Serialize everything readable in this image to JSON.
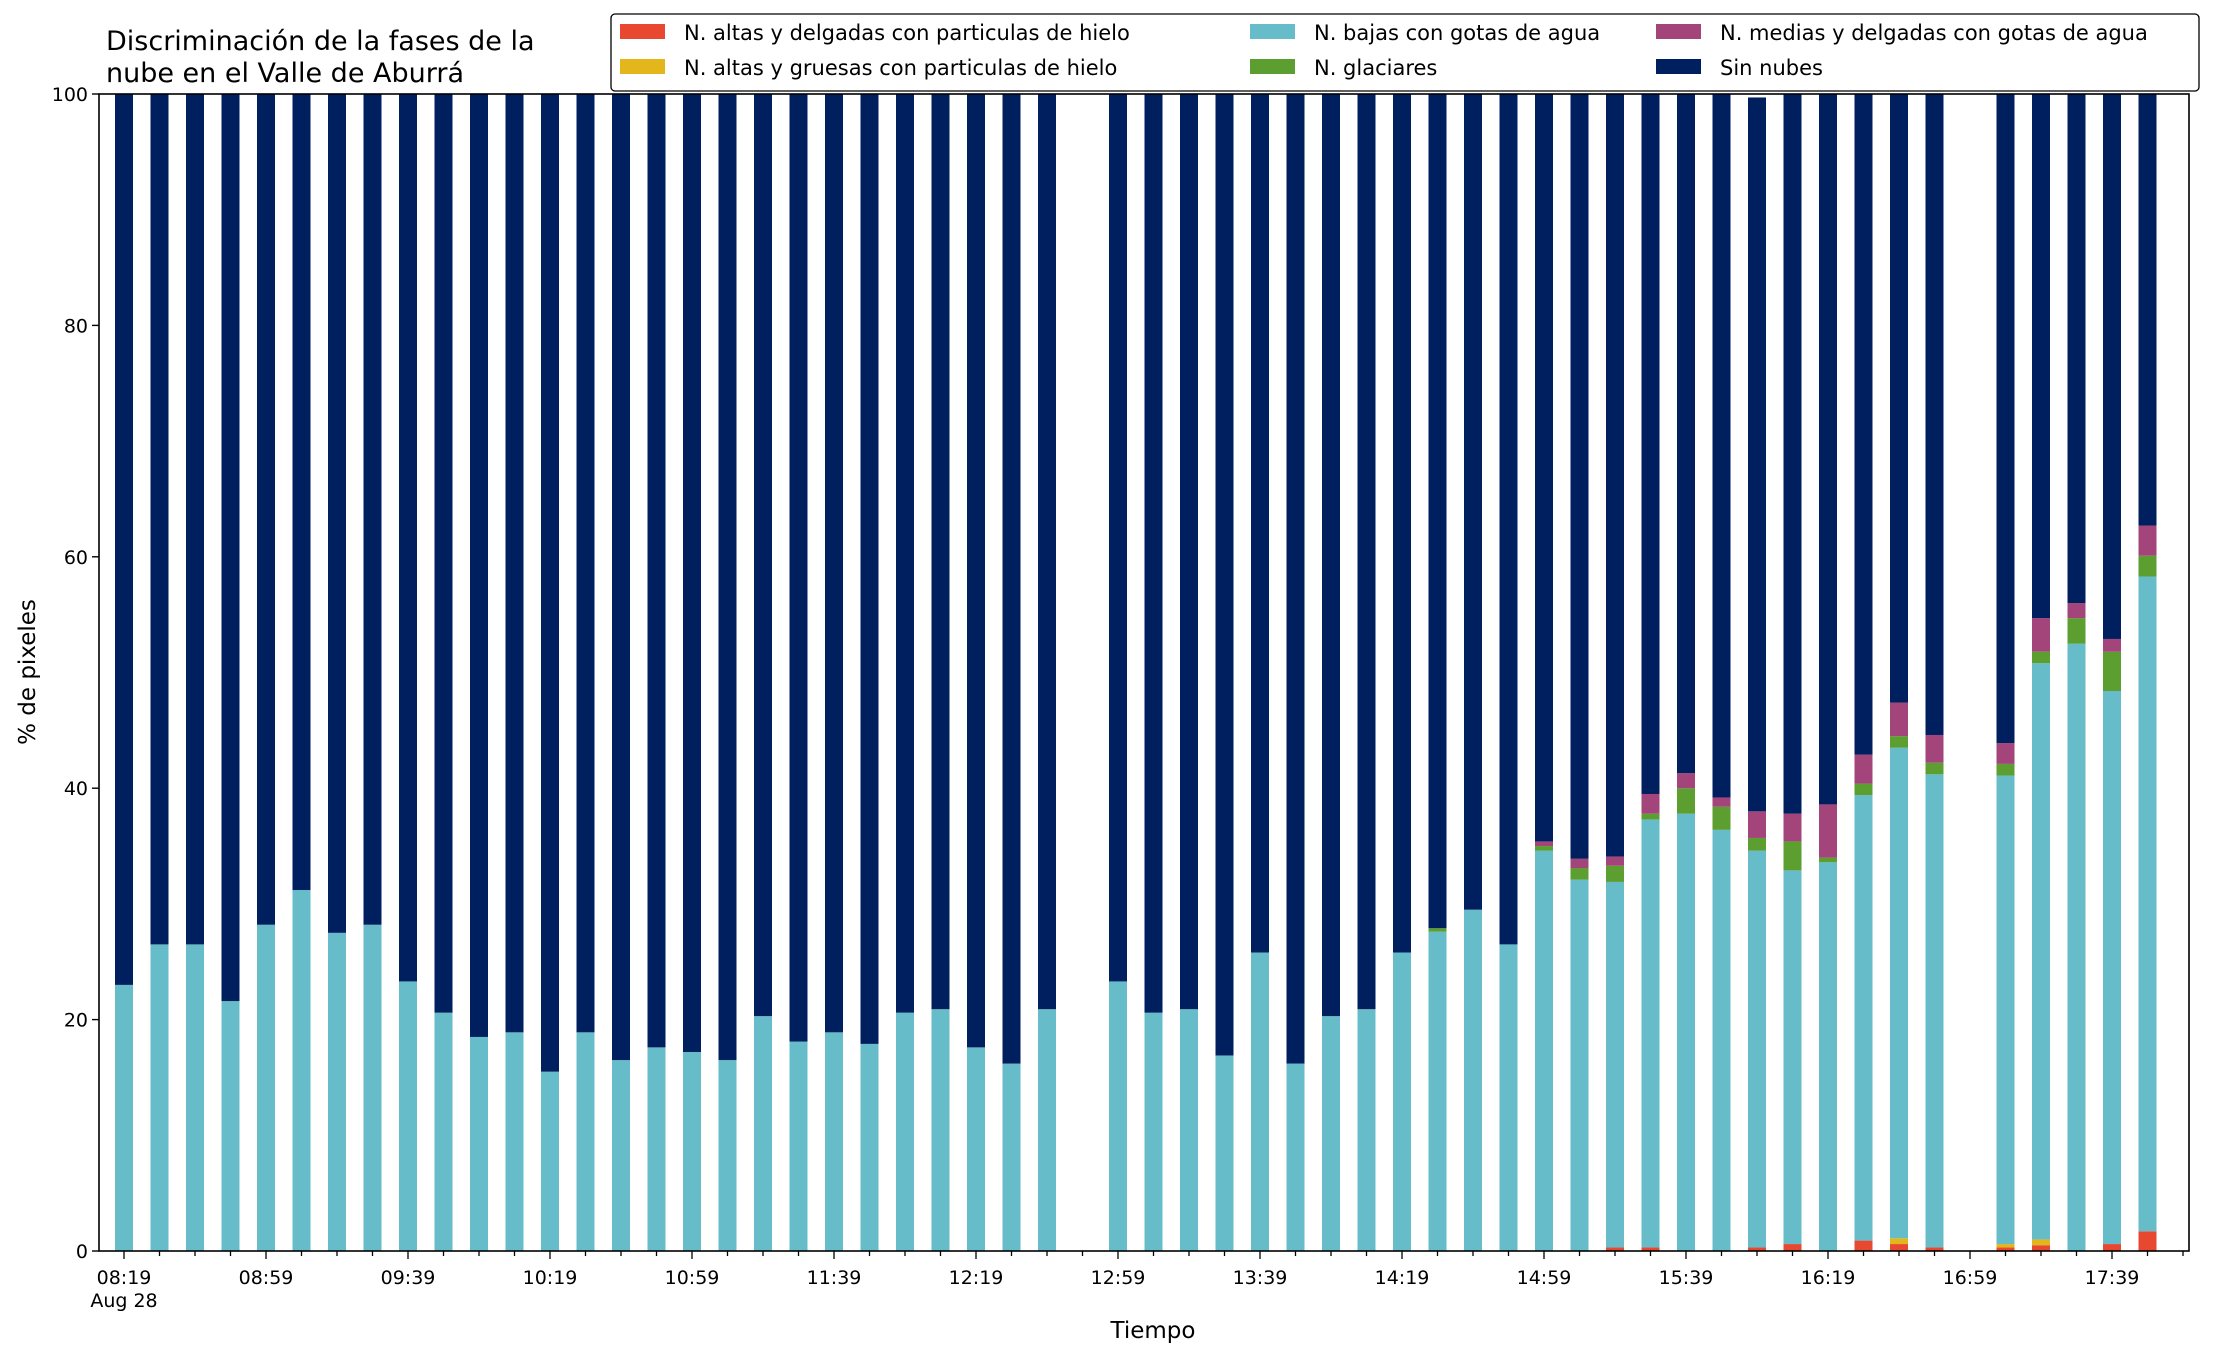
{
  "chart_data": {
    "type": "bar",
    "stacked": true,
    "title": [
      "Discriminación de la fases de la",
      "nube en el Valle de Aburrá"
    ],
    "xlabel": "Tiempo",
    "ylabel": "% de pixeles",
    "ylim": [
      0,
      100
    ],
    "yticks": [
      "0",
      "20",
      "40",
      "60",
      "80",
      "100"
    ],
    "xtick_labels": [
      "08:19",
      "08:59",
      "09:39",
      "10:19",
      "10:59",
      "11:39",
      "12:19",
      "12:59",
      "13:39",
      "14:19",
      "14:59",
      "15:39",
      "16:19",
      "16:59",
      "17:39"
    ],
    "xtick_sublabel": "Aug 28",
    "grid": false,
    "legend_position": "top-right",
    "colors": {
      "alta_delgada": "#E8482F",
      "alta_gruesa": "#E3B71B",
      "baja_agua": "#66BCC8",
      "glaciares": "#5C9E2F",
      "media_delgada": "#A3447A",
      "sin_nubes": "#001F5F"
    },
    "legend": [
      {
        "key": "alta_delgada",
        "label": "N. altas y delgadas con particulas de hielo"
      },
      {
        "key": "alta_gruesa",
        "label": "N. altas y gruesas con particulas de hielo"
      },
      {
        "key": "baja_agua",
        "label": "N. bajas con gotas de agua"
      },
      {
        "key": "glaciares",
        "label": "N. glaciares"
      },
      {
        "key": "media_delgada",
        "label": "N. medias y delgadas con gotas de agua"
      },
      {
        "key": "sin_nubes",
        "label": "Sin nubes"
      }
    ],
    "time_slots": [
      "08:19",
      "08:29",
      "08:39",
      "08:49",
      "08:59",
      "09:09",
      "09:19",
      "09:29",
      "09:39",
      "09:49",
      "09:59",
      "10:09",
      "10:19",
      "10:29",
      "10:39",
      "10:49",
      "10:59",
      "11:09",
      "11:19",
      "11:29",
      "11:39",
      "11:49",
      "11:59",
      "12:09",
      "12:19",
      "12:29",
      "12:39",
      "12:49",
      "12:59",
      "13:09",
      "13:19",
      "13:29",
      "13:39",
      "13:49",
      "13:59",
      "14:09",
      "14:19",
      "14:29",
      "14:39",
      "14:49",
      "14:59",
      "15:09",
      "15:19",
      "15:29",
      "15:39",
      "15:49",
      "15:59",
      "16:09",
      "16:19",
      "16:29",
      "16:39",
      "16:49",
      "16:59",
      "17:09",
      "17:19",
      "17:29",
      "17:39",
      "17:49"
    ],
    "series": [
      {
        "key": "alta_delgada",
        "values": [
          0,
          0,
          0,
          0,
          0,
          0,
          0,
          0,
          0,
          0,
          0,
          0,
          0,
          0,
          0,
          0,
          0,
          0,
          0,
          0,
          0,
          0,
          0,
          0,
          0,
          0,
          0,
          null,
          0,
          0,
          0,
          0,
          0,
          0,
          0,
          0,
          0,
          0,
          0,
          0,
          0,
          0,
          0.3,
          0.3,
          0,
          0,
          0.3,
          0.6,
          0,
          0.9,
          0.6,
          0.3,
          null,
          0.3,
          0.5,
          0,
          0.6,
          1.7
        ]
      },
      {
        "key": "alta_gruesa",
        "values": [
          0,
          0,
          0,
          0,
          0,
          0,
          0,
          0,
          0,
          0,
          0,
          0,
          0,
          0,
          0,
          0,
          0,
          0,
          0,
          0,
          0,
          0,
          0,
          0,
          0,
          0,
          0,
          null,
          0,
          0,
          0,
          0,
          0,
          0,
          0,
          0,
          0,
          0,
          0,
          0,
          0,
          0,
          0,
          0,
          0,
          0,
          0,
          0,
          0,
          0,
          0.5,
          0,
          null,
          0.3,
          0.5,
          0,
          0,
          0
        ]
      },
      {
        "key": "baja_agua",
        "values": [
          23.0,
          26.5,
          26.5,
          21.6,
          28.2,
          31.2,
          27.5,
          28.2,
          23.3,
          20.6,
          18.5,
          18.9,
          15.5,
          18.9,
          16.5,
          17.6,
          17.2,
          16.5,
          20.3,
          18.1,
          18.9,
          17.9,
          20.6,
          20.9,
          17.6,
          16.2,
          20.9,
          null,
          23.3,
          20.6,
          20.9,
          16.9,
          25.8,
          16.2,
          20.3,
          20.9,
          25.8,
          27.6,
          29.5,
          26.5,
          34.6,
          32.1,
          31.6,
          37.0,
          37.8,
          36.4,
          34.3,
          32.3,
          33.6,
          38.5,
          42.4,
          40.9,
          null,
          40.5,
          49.8,
          52.5,
          47.8,
          56.6
        ]
      },
      {
        "key": "glaciares",
        "values": [
          0,
          0,
          0,
          0,
          0,
          0,
          0,
          0,
          0,
          0,
          0,
          0,
          0,
          0,
          0,
          0,
          0,
          0,
          0,
          0,
          0,
          0,
          0,
          0,
          0,
          0,
          0,
          null,
          0,
          0,
          0,
          0,
          0,
          0,
          0,
          0,
          0,
          0.3,
          0,
          0,
          0.4,
          1.0,
          1.4,
          0.5,
          2.2,
          2.0,
          1.1,
          2.5,
          0.4,
          1.0,
          1.0,
          1.0,
          null,
          1.0,
          1.0,
          2.2,
          3.4,
          1.8
        ]
      },
      {
        "key": "media_delgada",
        "values": [
          0,
          0,
          0,
          0,
          0,
          0,
          0,
          0,
          0,
          0,
          0,
          0,
          0,
          0,
          0,
          0,
          0,
          0,
          0,
          0,
          0,
          0,
          0,
          0,
          0,
          0,
          0,
          null,
          0,
          0,
          0,
          0,
          0,
          0,
          0,
          0,
          0,
          0,
          0,
          0,
          0.4,
          0.8,
          0.8,
          1.7,
          1.3,
          0.8,
          2.3,
          2.4,
          4.6,
          2.5,
          2.9,
          2.4,
          null,
          1.8,
          2.9,
          1.3,
          1.1,
          2.6
        ]
      },
      {
        "key": "sin_nubes",
        "values": [
          77.0,
          73.5,
          73.5,
          78.4,
          71.8,
          68.8,
          72.5,
          71.8,
          76.7,
          79.4,
          81.5,
          81.1,
          84.5,
          81.1,
          83.5,
          82.4,
          82.8,
          83.5,
          79.7,
          81.9,
          81.1,
          82.1,
          79.4,
          79.1,
          82.4,
          83.8,
          79.1,
          null,
          76.7,
          79.4,
          79.1,
          83.1,
          74.2,
          83.8,
          79.7,
          79.1,
          74.2,
          72.1,
          70.5,
          73.5,
          64.6,
          66.1,
          65.9,
          60.5,
          58.7,
          60.8,
          61.7,
          62.2,
          61.4,
          57.1,
          52.6,
          55.4,
          null,
          56.1,
          45.3,
          44.0,
          47.1,
          37.3
        ]
      }
    ]
  }
}
